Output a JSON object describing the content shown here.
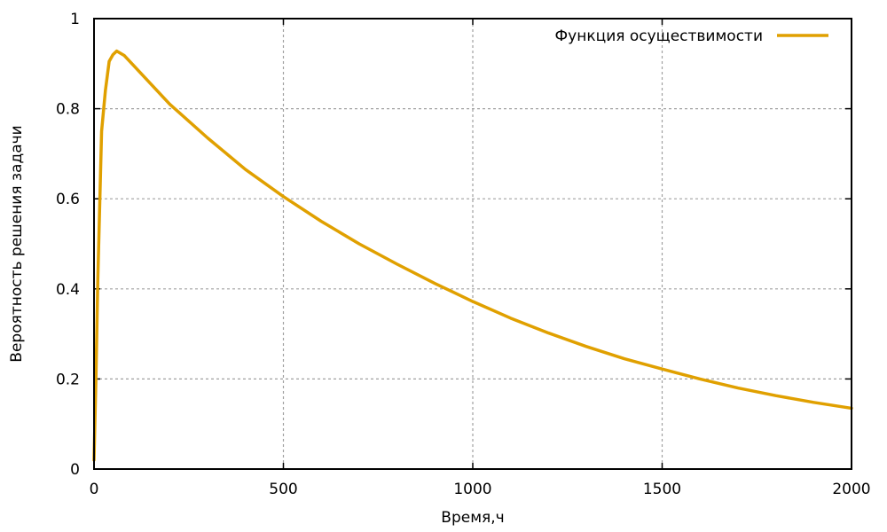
{
  "chart_data": {
    "type": "line",
    "title": "",
    "xlabel": "Время,ч",
    "ylabel": "Вероятность решения задачи",
    "xlim": [
      0,
      2000
    ],
    "ylim": [
      0,
      1
    ],
    "xticks": [
      0,
      500,
      1000,
      1500,
      2000
    ],
    "yticks": [
      0,
      0.2,
      0.4,
      0.6,
      0.8,
      1
    ],
    "xtick_labels": [
      "0",
      "500",
      "1000",
      "1500",
      "2000"
    ],
    "ytick_labels": [
      "0",
      "0.2",
      "0.4",
      "0.6",
      "0.8",
      "1"
    ],
    "grid": true,
    "legend_position": "top-right",
    "series": [
      {
        "name": "Функция осуществимости",
        "color": "#e0a000",
        "x": [
          0,
          5,
          10,
          20,
          30,
          40,
          50,
          60,
          80,
          100,
          150,
          200,
          300,
          400,
          500,
          600,
          700,
          800,
          900,
          1000,
          1100,
          1200,
          1300,
          1400,
          1500,
          1600,
          1700,
          1800,
          1900,
          2000
        ],
        "y": [
          0.02,
          0.2,
          0.42,
          0.75,
          0.84,
          0.905,
          0.92,
          0.928,
          0.918,
          0.9,
          0.855,
          0.81,
          0.735,
          0.665,
          0.605,
          0.55,
          0.5,
          0.455,
          0.412,
          0.372,
          0.335,
          0.302,
          0.272,
          0.245,
          0.222,
          0.2,
          0.18,
          0.163,
          0.148,
          0.135
        ]
      }
    ]
  }
}
